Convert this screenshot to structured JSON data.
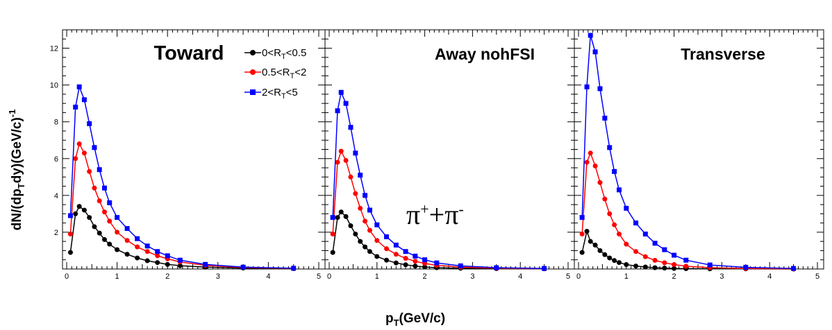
{
  "chart_data": {
    "type": "line",
    "ylabel": {
      "main": "dN/(dp",
      "sub1": "T",
      "mid": "dy)(GeV/c)",
      "sup": "-1"
    },
    "xlabel": {
      "main": "p",
      "sub": "T",
      "rest": "(GeV/c)"
    },
    "xlim": [
      0,
      5
    ],
    "ylim": [
      0,
      13
    ],
    "x_ticks": [
      "0",
      "1",
      "2",
      "3",
      "4",
      "5"
    ],
    "y_ticks": [
      "2",
      "4",
      "6",
      "8",
      "10",
      "12"
    ],
    "annotation": {
      "base": "π",
      "sup1": "+",
      "plus": "+",
      "base2": "π",
      "sup2": "-"
    },
    "legend": [
      {
        "pre": "0<R",
        "sub": "T",
        "post": "<0.5",
        "color": "#000000",
        "marker": "circle"
      },
      {
        "pre": "0.5<R",
        "sub": "T",
        "post": "<2",
        "color": "#ff0000",
        "marker": "circle"
      },
      {
        "pre": "2<R",
        "sub": "T",
        "post": "<5",
        "color": "#0000ff",
        "marker": "square"
      }
    ],
    "x": [
      0.075,
      0.175,
      0.25,
      0.35,
      0.45,
      0.55,
      0.65,
      0.75,
      0.85,
      1.0,
      1.2,
      1.4,
      1.6,
      1.8,
      2.0,
      2.25,
      2.75,
      3.5,
      4.5
    ],
    "panels": [
      {
        "title": "Toward",
        "series": [
          {
            "color": "#000000",
            "marker": "circle",
            "values": [
              0.9,
              3.0,
              3.4,
              3.2,
              2.8,
              2.3,
              1.95,
              1.6,
              1.35,
              1.05,
              0.8,
              0.6,
              0.45,
              0.35,
              0.25,
              0.18,
              0.1,
              0.05,
              0.02
            ]
          },
          {
            "color": "#ff0000",
            "marker": "circle",
            "values": [
              1.9,
              6.0,
              6.8,
              6.3,
              5.3,
              4.4,
              3.7,
              3.1,
              2.6,
              2.0,
              1.55,
              1.2,
              0.95,
              0.72,
              0.55,
              0.38,
              0.2,
              0.08,
              0.03
            ]
          },
          {
            "color": "#0000ff",
            "marker": "square",
            "values": [
              2.9,
              8.8,
              9.9,
              9.2,
              7.9,
              6.6,
              5.4,
              4.4,
              3.6,
              2.8,
              2.2,
              1.65,
              1.25,
              0.95,
              0.72,
              0.48,
              0.25,
              0.1,
              0.04
            ]
          }
        ]
      },
      {
        "title": "Away  nohFSI",
        "series": [
          {
            "color": "#000000",
            "marker": "circle",
            "values": [
              0.9,
              2.8,
              3.1,
              2.85,
              2.35,
              1.9,
              1.5,
              1.2,
              0.95,
              0.68,
              0.48,
              0.33,
              0.23,
              0.16,
              0.11,
              0.07,
              0.04,
              0.02,
              0.01
            ]
          },
          {
            "color": "#ff0000",
            "marker": "circle",
            "values": [
              1.9,
              5.8,
              6.4,
              5.9,
              5.0,
              4.1,
              3.3,
              2.6,
              2.1,
              1.55,
              1.1,
              0.8,
              0.58,
              0.42,
              0.3,
              0.2,
              0.1,
              0.04,
              0.02
            ]
          },
          {
            "color": "#0000ff",
            "marker": "square",
            "values": [
              2.8,
              8.6,
              9.6,
              9.0,
              7.7,
              6.3,
              5.1,
              4.0,
              3.2,
              2.4,
              1.75,
              1.3,
              0.95,
              0.7,
              0.5,
              0.33,
              0.17,
              0.07,
              0.03
            ]
          }
        ]
      },
      {
        "title": "Transverse",
        "series": [
          {
            "color": "#000000",
            "marker": "circle",
            "values": [
              0.9,
              2.05,
              1.5,
              1.3,
              1.0,
              0.78,
              0.6,
              0.46,
              0.35,
              0.24,
              0.16,
              0.11,
              0.07,
              0.05,
              0.03,
              0.02,
              0.01,
              0.01,
              0.0
            ]
          },
          {
            "color": "#ff0000",
            "marker": "circle",
            "values": [
              1.9,
              5.8,
              6.3,
              5.6,
              4.7,
              3.8,
              3.0,
              2.4,
              1.9,
              1.35,
              0.95,
              0.67,
              0.47,
              0.34,
              0.24,
              0.15,
              0.07,
              0.03,
              0.01
            ]
          },
          {
            "color": "#0000ff",
            "marker": "square",
            "values": [
              2.8,
              9.9,
              12.7,
              11.8,
              9.8,
              8.2,
              6.6,
              5.3,
              4.3,
              3.3,
              2.5,
              1.9,
              1.4,
              1.05,
              0.75,
              0.48,
              0.22,
              0.09,
              0.03
            ]
          }
        ]
      }
    ]
  }
}
